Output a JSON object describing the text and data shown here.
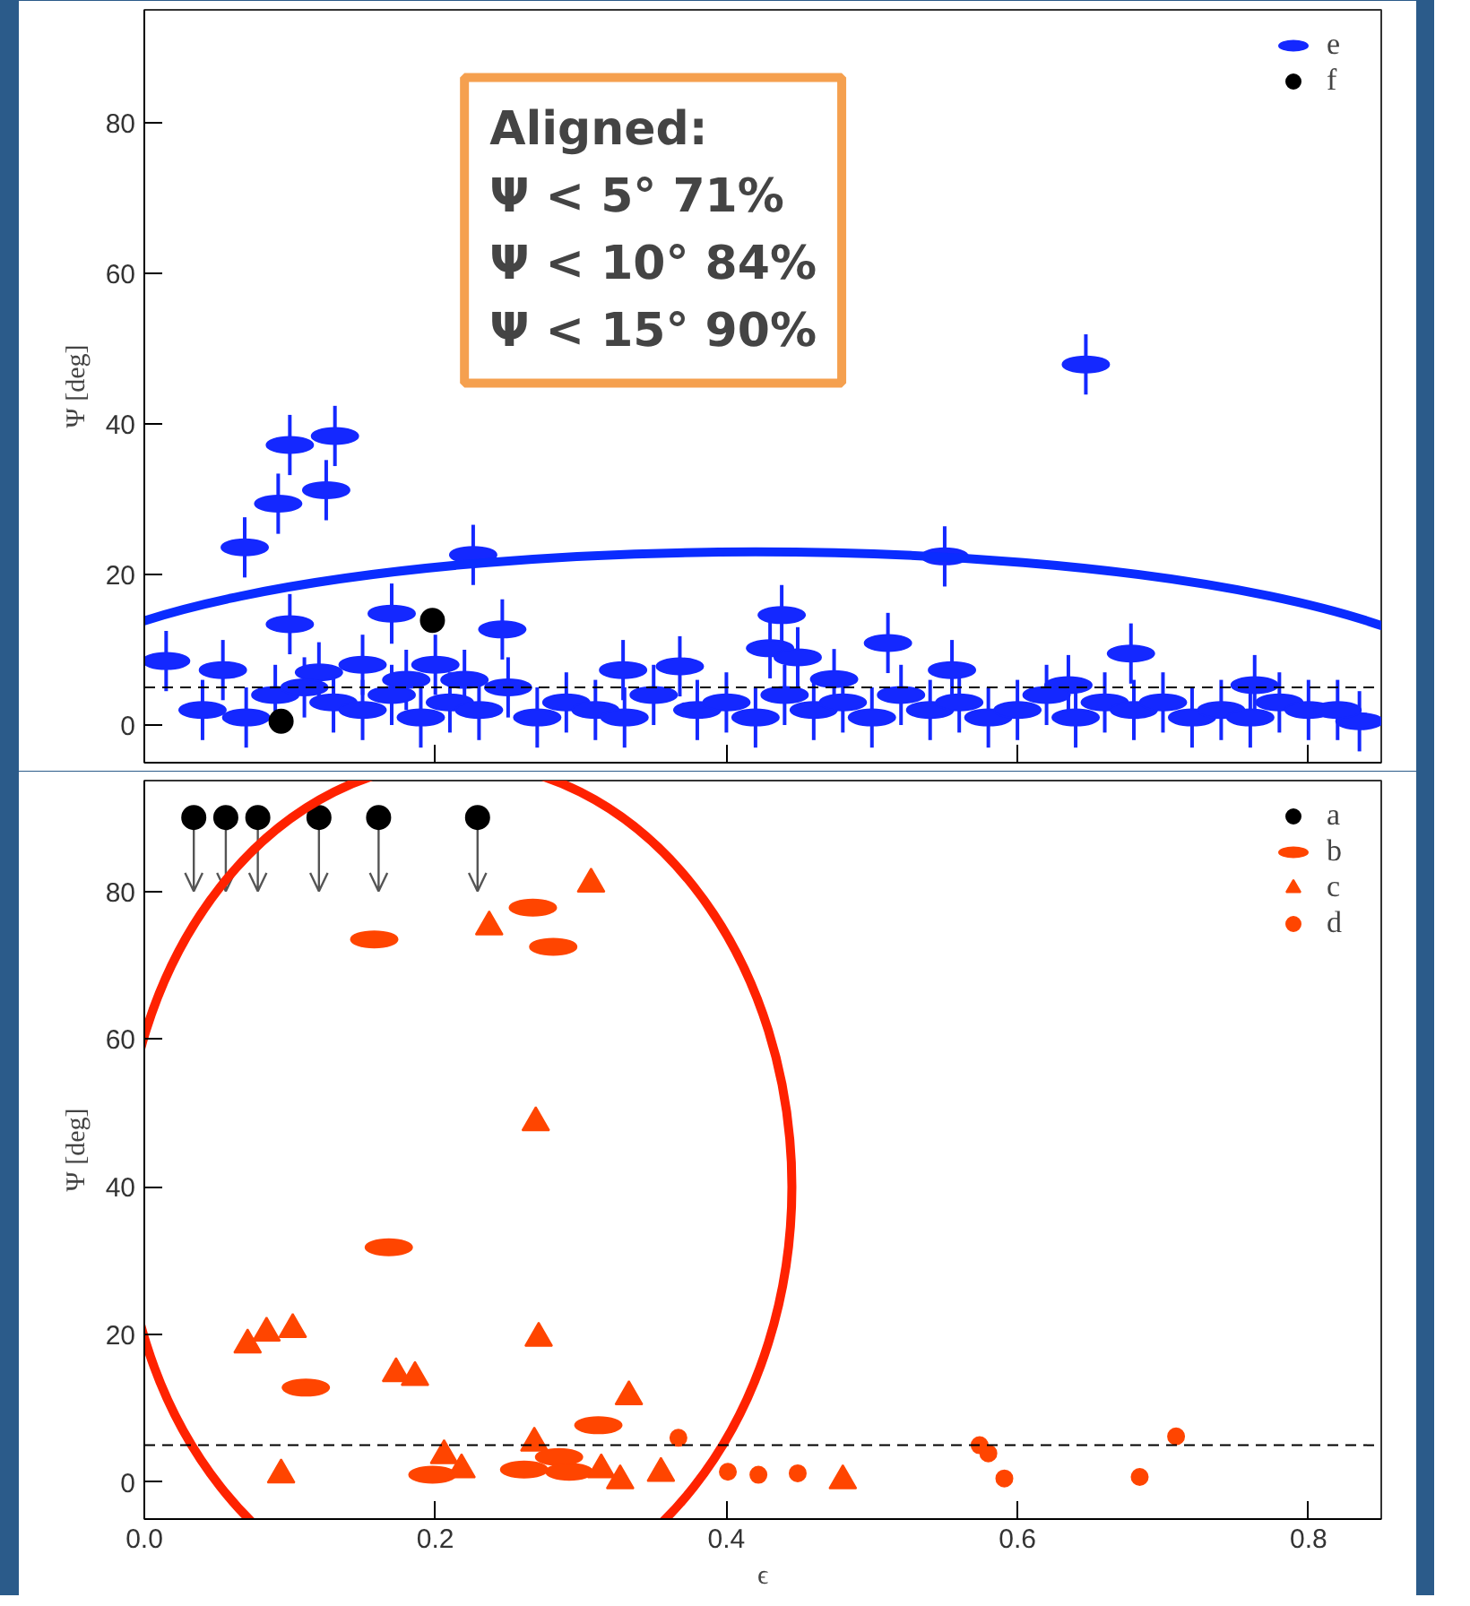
{
  "chart_data": [
    {
      "type": "scatter",
      "xlim": [
        0,
        0.85
      ],
      "ylim": [
        -5,
        95
      ],
      "xticks": [
        0,
        0.2,
        0.4,
        0.6,
        0.8
      ],
      "yticks": [
        0,
        20,
        40,
        60,
        80
      ],
      "ylabel": "Ψ [deg]",
      "tick_labels": "y",
      "legend": "top right",
      "grid": false,
      "ref_lines": [
        {
          "axis": "y",
          "value": 5,
          "line_style": "dashed",
          "color": "#000000"
        }
      ],
      "annotations": [
        "Aligned:\nΨ < 5° 71%\nΨ < 10° 84%\nΨ < 15° 90%"
      ],
      "series": [
        {
          "name": "e",
          "color": "#1428ff",
          "x": [
            0.069,
            0.092,
            0.1,
            0.125,
            0.131,
            0.226,
            0.647,
            0.55,
            0.015,
            0.054,
            0.1,
            0.17,
            0.246,
            0.329,
            0.368,
            0.438,
            0.43,
            0.449,
            0.511,
            0.678,
            0.835,
            0.763,
            0.635,
            0.555,
            0.474,
            0.12,
            0.15,
            0.18,
            0.2,
            0.22,
            0.04,
            0.07,
            0.09,
            0.11,
            0.13,
            0.15,
            0.17,
            0.19,
            0.21,
            0.23,
            0.25,
            0.27,
            0.29,
            0.31,
            0.33,
            0.35,
            0.38,
            0.4,
            0.42,
            0.44,
            0.46,
            0.48,
            0.5,
            0.52,
            0.54,
            0.56,
            0.58,
            0.6,
            0.62,
            0.64,
            0.66,
            0.68,
            0.7,
            0.72,
            0.74,
            0.76,
            0.78,
            0.8,
            0.82
          ],
          "values": [
            23.6,
            29.4,
            37.2,
            31.2,
            38.4,
            22.6,
            47.9,
            22.4,
            8.5,
            7.3,
            13.4,
            14.8,
            12.7,
            7.3,
            7.8,
            14.6,
            10.2,
            9,
            10.9,
            9.5,
            0.5,
            5.3,
            5.3,
            7.3,
            6.1,
            7,
            8,
            6,
            8,
            6,
            2,
            1,
            4,
            5,
            3,
            2,
            4,
            1,
            3,
            2,
            5,
            1,
            3,
            2,
            1,
            4,
            2,
            3,
            1,
            4,
            2,
            3,
            1,
            4,
            2,
            3,
            1,
            2,
            4,
            1,
            3,
            2,
            3,
            1,
            2,
            1,
            3,
            2,
            2
          ],
          "errors": [
            4,
            4,
            4,
            4,
            4,
            4,
            4,
            4,
            4,
            4,
            4,
            4,
            4,
            4,
            4,
            4,
            4,
            4,
            4,
            4,
            4,
            4,
            4,
            4,
            4,
            4,
            4,
            4,
            4,
            4,
            4,
            4,
            4,
            4,
            4,
            4,
            4,
            4,
            4,
            4,
            4,
            4,
            4,
            4,
            4,
            4,
            4,
            4,
            4,
            4,
            4,
            4,
            4,
            4,
            4,
            4,
            4,
            4,
            4,
            4,
            4,
            4,
            4,
            4,
            4,
            4,
            4,
            4,
            4
          ]
        },
        {
          "name": "f",
          "color": "#000000",
          "marker": "circle",
          "x": [
            0.198,
            0.094
          ],
          "values": [
            13.9,
            0.5
          ]
        }
      ]
    },
    {
      "type": "scatter",
      "xlim": [
        0,
        0.85
      ],
      "ylim": [
        -5,
        95
      ],
      "xticks": [
        {
          "value": 0,
          "label": "0.0"
        },
        {
          "value": 0.2,
          "label": "0.2"
        },
        {
          "value": 0.4,
          "label": "0.4"
        },
        {
          "value": 0.6,
          "label": "0.6"
        },
        {
          "value": 0.8,
          "label": "0.8"
        }
      ],
      "yticks": [
        0,
        20,
        40,
        60,
        80
      ],
      "xlabel": "ϵ",
      "ylabel": "Ψ [deg]",
      "legend": "top right",
      "grid": false,
      "ref_lines": [
        {
          "axis": "y",
          "value": 5,
          "line_style": "dashed",
          "color": "#000000"
        }
      ],
      "series": [
        {
          "name": "a",
          "color": "#000000",
          "marker": "circle",
          "x": [
            0.034,
            0.056,
            0.078,
            0.12,
            0.161,
            0.229
          ],
          "values": [
            90,
            90,
            90,
            90,
            90,
            90
          ],
          "errors": [
            [
              80,
              90
            ],
            [
              80,
              90
            ],
            [
              80,
              90
            ],
            [
              80,
              90
            ],
            [
              80,
              90
            ],
            [
              80,
              90
            ]
          ]
        },
        {
          "name": "b",
          "color": "#ff4500",
          "x": [
            0.158,
            0.267,
            0.281,
            0.168,
            0.111,
            0.312,
            0.198,
            0.261,
            0.285,
            0.292
          ],
          "values": [
            73.5,
            77.8,
            72.5,
            31.8,
            12.8,
            7.7,
            1.0,
            1.7,
            3.4,
            1.4
          ]
        },
        {
          "name": "c",
          "color": "#ff4500",
          "marker": "triangle",
          "x": [
            0.071,
            0.084,
            0.102,
            0.094,
            0.173,
            0.186,
            0.206,
            0.218,
            0.237,
            0.307,
            0.269,
            0.271,
            0.268,
            0.314,
            0.327,
            0.333,
            0.355,
            0.48
          ],
          "values": [
            18.6,
            20.2,
            20.7,
            1.0,
            14.7,
            14.2,
            3.6,
            1.7,
            75.2,
            81.0,
            48.7,
            19.5,
            5.3,
            1.7,
            0.2,
            11.6,
            1.2,
            0.2
          ]
        },
        {
          "name": "d",
          "color": "#ff4500",
          "marker": "circle",
          "x": [
            0.367,
            0.401,
            0.422,
            0.449,
            0.574,
            0.58,
            0.591,
            0.684,
            0.709
          ],
          "values": [
            6.0,
            1.4,
            1.0,
            1.2,
            5.0,
            3.9,
            0.5,
            0.7,
            6.2
          ]
        }
      ]
    }
  ]
}
